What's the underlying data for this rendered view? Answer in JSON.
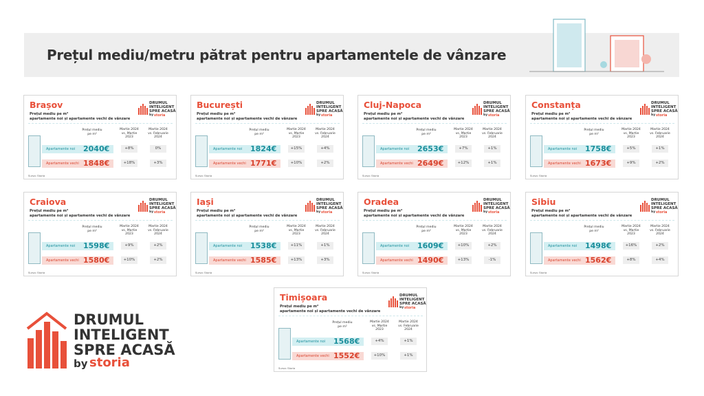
{
  "header": {
    "title": "Prețul mediu/metru pătrat pentru apartamentele de vânzare"
  },
  "logo": {
    "line1": "DRUMUL",
    "line2": "INTELIGENT",
    "line3": "SPRE ACASĂ",
    "by": "by",
    "brand": "storia"
  },
  "labels": {
    "subtitle1": "Prețul mediu pe m²",
    "subtitle2": "apartamente noi și apartamente vechi de vânzare",
    "col_price": "Prețul mediu pe m²",
    "col_yoy": "Martie 2024 vs. Martie 2023",
    "col_mom": "Martie 2024 vs. Februarie 2024",
    "row_new": "Apartamente noi",
    "row_old": "Apartamente vechi",
    "source": "Sursa: Storia"
  },
  "cards": [
    {
      "city": "Brașov",
      "new": {
        "price": "2040€",
        "yoy": "+8%",
        "mom": "0%"
      },
      "old": {
        "price": "1848€",
        "yoy": "+18%",
        "mom": "+3%"
      }
    },
    {
      "city": "București",
      "new": {
        "price": "1824€",
        "yoy": "+15%",
        "mom": "+4%"
      },
      "old": {
        "price": "1771€",
        "yoy": "+10%",
        "mom": "+2%"
      }
    },
    {
      "city": "Cluj-Napoca",
      "new": {
        "price": "2653€",
        "yoy": "+7%",
        "mom": "+1%"
      },
      "old": {
        "price": "2649€",
        "yoy": "+12%",
        "mom": "+1%"
      }
    },
    {
      "city": "Constanța",
      "new": {
        "price": "1758€",
        "yoy": "+5%",
        "mom": "+1%"
      },
      "old": {
        "price": "1673€",
        "yoy": "+9%",
        "mom": "+2%"
      }
    },
    {
      "city": "Craiova",
      "new": {
        "price": "1598€",
        "yoy": "+9%",
        "mom": "+2%"
      },
      "old": {
        "price": "1580€",
        "yoy": "+10%",
        "mom": "+2%"
      }
    },
    {
      "city": "Iași",
      "new": {
        "price": "1538€",
        "yoy": "+11%",
        "mom": "+1%"
      },
      "old": {
        "price": "1585€",
        "yoy": "+13%",
        "mom": "+3%"
      }
    },
    {
      "city": "Oradea",
      "new": {
        "price": "1609€",
        "yoy": "+10%",
        "mom": "+2%"
      },
      "old": {
        "price": "1490€",
        "yoy": "+13%",
        "mom": "-1%"
      }
    },
    {
      "city": "Sibiu",
      "new": {
        "price": "1498€",
        "yoy": "+16%",
        "mom": "+2%"
      },
      "old": {
        "price": "1562€",
        "yoy": "+8%",
        "mom": "+4%"
      }
    },
    {
      "city": "Timișoara",
      "new": {
        "price": "1568€",
        "yoy": "+4%",
        "mom": "+1%"
      },
      "old": {
        "price": "1552€",
        "yoy": "+10%",
        "mom": "+1%"
      }
    }
  ]
}
